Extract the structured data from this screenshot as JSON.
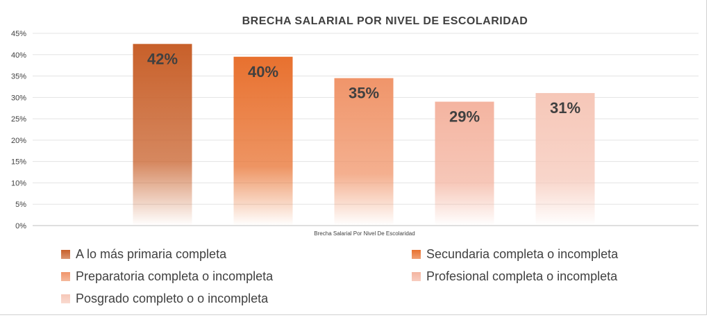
{
  "chart_data": {
    "type": "bar",
    "title": "BRECHA SALARIAL POR NIVEL DE ESCOLARIDAD",
    "xlabel": "Brecha Salarial Por Nivel De Escolaridad",
    "ylabel": "",
    "ylim": [
      0,
      45
    ],
    "ytick_labels": [
      "0%",
      "5%",
      "10%",
      "15%",
      "20%",
      "25%",
      "30%",
      "35%",
      "40%",
      "45%"
    ],
    "grid": true,
    "legend_position": "bottom",
    "series": [
      {
        "name": "A lo más primaria completa",
        "value": 42.5,
        "label": "42%",
        "color": "#c8602a"
      },
      {
        "name": "Secundaria completa o incompleta",
        "value": 39.5,
        "label": "40%",
        "color": "#e8712f"
      },
      {
        "name": "Preparatoria completa o incompleta",
        "value": 34.5,
        "label": "35%",
        "color": "#f0956a"
      },
      {
        "name": "Profesional completa o incompleta",
        "value": 29,
        "label": "29%",
        "color": "#f4b4a0"
      },
      {
        "name": "Posgrado completo o o incompleta",
        "value": 31,
        "label": "31%",
        "color": "#f6c7b8"
      }
    ]
  }
}
